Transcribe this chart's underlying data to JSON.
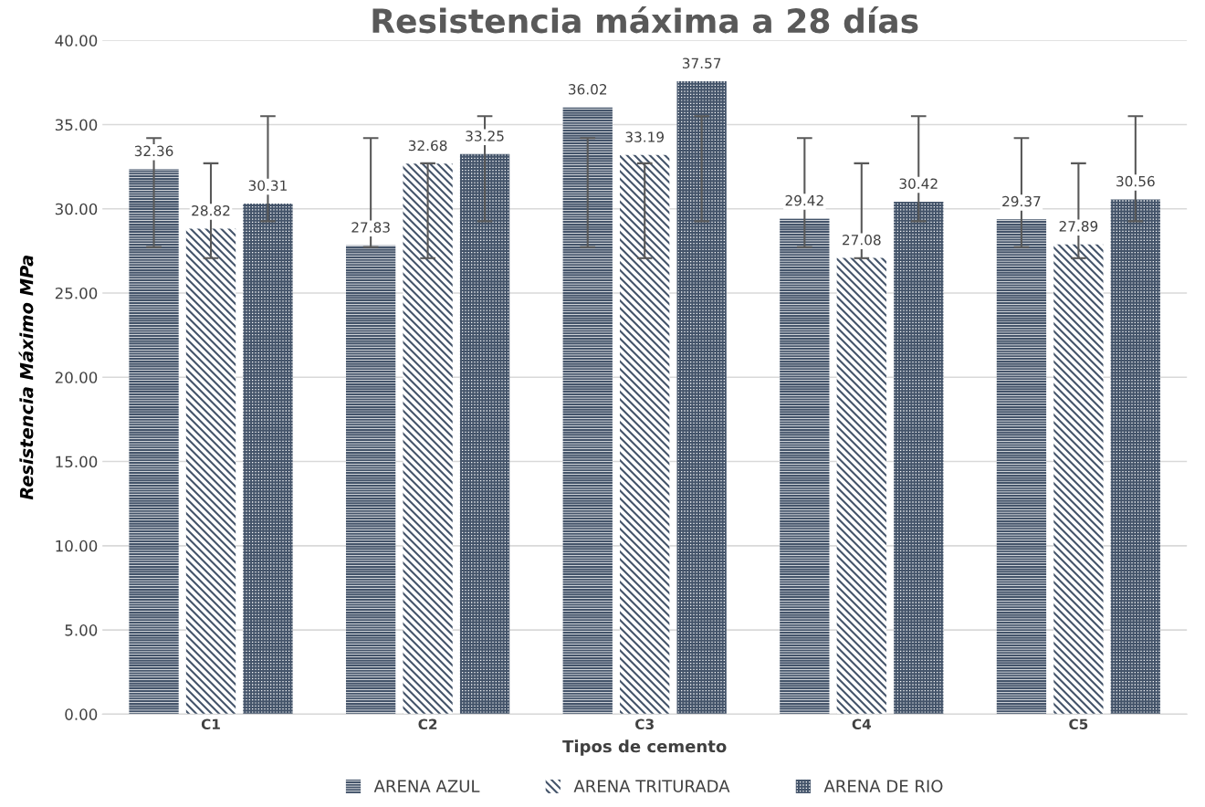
{
  "chart_data": {
    "type": "bar",
    "title": "Resistencia máxima a 28 días",
    "xlabel": "Tipos de cemento",
    "ylabel": "Resistencia Máximo MPa",
    "categories": [
      "C1",
      "C2",
      "C3",
      "C4",
      "C5"
    ],
    "series": [
      {
        "name": "ARENA AZUL",
        "color": "#44546a",
        "values": [
          32.36,
          27.83,
          36.02,
          29.42,
          29.37
        ],
        "errors": [
          [
            27.73,
            34.2
          ],
          [
            27.73,
            34.2
          ],
          [
            27.73,
            34.2
          ],
          [
            27.73,
            34.2
          ],
          [
            27.73,
            34.2
          ]
        ]
      },
      {
        "name": "ARENA TRITURADA",
        "color": "#44546a",
        "values": [
          28.82,
          32.68,
          33.19,
          27.08,
          27.89
        ],
        "errors": [
          [
            27.07,
            32.7
          ],
          [
            27.07,
            32.7
          ],
          [
            27.07,
            32.7
          ],
          [
            27.07,
            32.7
          ],
          [
            27.07,
            32.7
          ]
        ]
      },
      {
        "name": "ARENA DE RIO",
        "color": "#44546a",
        "values": [
          30.31,
          33.25,
          37.57,
          30.42,
          30.56
        ],
        "errors": [
          [
            29.26,
            35.5
          ],
          [
            29.26,
            35.5
          ],
          [
            29.26,
            35.5
          ],
          [
            29.26,
            35.5
          ],
          [
            29.26,
            35.5
          ]
        ]
      }
    ],
    "ylim": [
      0,
      40
    ],
    "yticks": [
      {
        "value": 0,
        "label": "0.00"
      },
      {
        "value": 5,
        "label": "5.00"
      },
      {
        "value": 10,
        "label": "10.00"
      },
      {
        "value": 15,
        "label": "15.00"
      },
      {
        "value": 20,
        "label": "20.00"
      },
      {
        "value": 25,
        "label": "25.00"
      },
      {
        "value": 30,
        "label": "30.00"
      },
      {
        "value": 35,
        "label": "35.00"
      },
      {
        "value": 40,
        "label": "40.00"
      }
    ],
    "grid": "y",
    "legend": "bottom",
    "data_labels": true
  }
}
